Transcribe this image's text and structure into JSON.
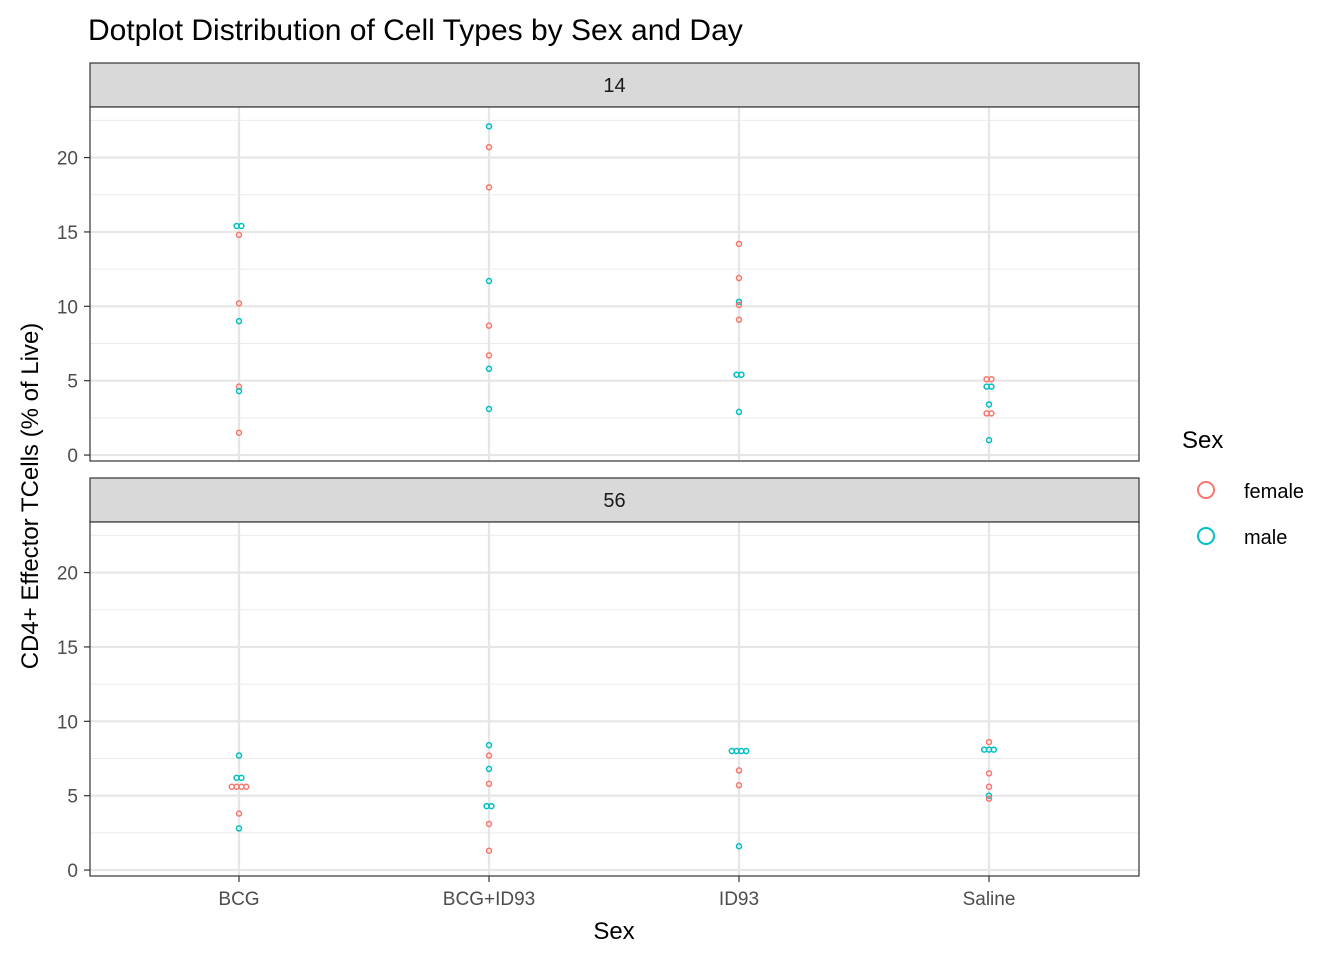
{
  "chart_data": {
    "type": "scatter",
    "title": "Dotplot Distribution of Cell Types by Sex and Day",
    "xlabel": "Sex",
    "ylabel": "CD4+ Effector TCells (% of Live)",
    "categories": [
      "BCG",
      "BCG+ID93",
      "ID93",
      "Saline"
    ],
    "ylim": [
      -0.4,
      23.4
    ],
    "yticks": [
      0,
      5,
      10,
      15,
      20
    ],
    "grid": true,
    "legend": {
      "title": "Sex",
      "position": "right",
      "entries": [
        {
          "label": "female",
          "color": "#F8766D"
        },
        {
          "label": "male",
          "color": "#00BFC4"
        }
      ]
    },
    "panels": [
      {
        "label": "14",
        "points": [
          {
            "x": "BCG",
            "sex": "male",
            "y": 15.4
          },
          {
            "x": "BCG",
            "sex": "male",
            "y": 15.4
          },
          {
            "x": "BCG",
            "sex": "female",
            "y": 14.8
          },
          {
            "x": "BCG",
            "sex": "female",
            "y": 10.2
          },
          {
            "x": "BCG",
            "sex": "male",
            "y": 9.0
          },
          {
            "x": "BCG",
            "sex": "female",
            "y": 4.6
          },
          {
            "x": "BCG",
            "sex": "male",
            "y": 4.3
          },
          {
            "x": "BCG",
            "sex": "female",
            "y": 1.5
          },
          {
            "x": "BCG+ID93",
            "sex": "male",
            "y": 22.1
          },
          {
            "x": "BCG+ID93",
            "sex": "female",
            "y": 20.7
          },
          {
            "x": "BCG+ID93",
            "sex": "female",
            "y": 18.0
          },
          {
            "x": "BCG+ID93",
            "sex": "male",
            "y": 11.7
          },
          {
            "x": "BCG+ID93",
            "sex": "female",
            "y": 8.7
          },
          {
            "x": "BCG+ID93",
            "sex": "female",
            "y": 6.7
          },
          {
            "x": "BCG+ID93",
            "sex": "male",
            "y": 5.8
          },
          {
            "x": "BCG+ID93",
            "sex": "male",
            "y": 3.1
          },
          {
            "x": "ID93",
            "sex": "female",
            "y": 14.2
          },
          {
            "x": "ID93",
            "sex": "female",
            "y": 11.9
          },
          {
            "x": "ID93",
            "sex": "male",
            "y": 10.3
          },
          {
            "x": "ID93",
            "sex": "female",
            "y": 10.1
          },
          {
            "x": "ID93",
            "sex": "female",
            "y": 9.1
          },
          {
            "x": "ID93",
            "sex": "male",
            "y": 5.4
          },
          {
            "x": "ID93",
            "sex": "male",
            "y": 5.4
          },
          {
            "x": "ID93",
            "sex": "male",
            "y": 2.9
          },
          {
            "x": "Saline",
            "sex": "female",
            "y": 5.1
          },
          {
            "x": "Saline",
            "sex": "female",
            "y": 5.1
          },
          {
            "x": "Saline",
            "sex": "male",
            "y": 4.6
          },
          {
            "x": "Saline",
            "sex": "male",
            "y": 4.6
          },
          {
            "x": "Saline",
            "sex": "male",
            "y": 3.4
          },
          {
            "x": "Saline",
            "sex": "female",
            "y": 2.8
          },
          {
            "x": "Saline",
            "sex": "female",
            "y": 2.8
          },
          {
            "x": "Saline",
            "sex": "male",
            "y": 1.0
          }
        ]
      },
      {
        "label": "56",
        "points": [
          {
            "x": "BCG",
            "sex": "male",
            "y": 7.7
          },
          {
            "x": "BCG",
            "sex": "male",
            "y": 6.2
          },
          {
            "x": "BCG",
            "sex": "male",
            "y": 6.2
          },
          {
            "x": "BCG",
            "sex": "female",
            "y": 5.6
          },
          {
            "x": "BCG",
            "sex": "female",
            "y": 5.6
          },
          {
            "x": "BCG",
            "sex": "female",
            "y": 5.6
          },
          {
            "x": "BCG",
            "sex": "female",
            "y": 5.6
          },
          {
            "x": "BCG",
            "sex": "female",
            "y": 3.8
          },
          {
            "x": "BCG",
            "sex": "male",
            "y": 2.8
          },
          {
            "x": "BCG+ID93",
            "sex": "male",
            "y": 8.4
          },
          {
            "x": "BCG+ID93",
            "sex": "female",
            "y": 7.7
          },
          {
            "x": "BCG+ID93",
            "sex": "male",
            "y": 6.8
          },
          {
            "x": "BCG+ID93",
            "sex": "female",
            "y": 5.8
          },
          {
            "x": "BCG+ID93",
            "sex": "male",
            "y": 4.3
          },
          {
            "x": "BCG+ID93",
            "sex": "male",
            "y": 4.3
          },
          {
            "x": "BCG+ID93",
            "sex": "female",
            "y": 3.1
          },
          {
            "x": "BCG+ID93",
            "sex": "female",
            "y": 1.3
          },
          {
            "x": "ID93",
            "sex": "male",
            "y": 8.0
          },
          {
            "x": "ID93",
            "sex": "male",
            "y": 8.0
          },
          {
            "x": "ID93",
            "sex": "male",
            "y": 8.0
          },
          {
            "x": "ID93",
            "sex": "male",
            "y": 8.0
          },
          {
            "x": "ID93",
            "sex": "female",
            "y": 6.7
          },
          {
            "x": "ID93",
            "sex": "female",
            "y": 5.7
          },
          {
            "x": "ID93",
            "sex": "male",
            "y": 1.6
          },
          {
            "x": "Saline",
            "sex": "female",
            "y": 8.6
          },
          {
            "x": "Saline",
            "sex": "male",
            "y": 8.1
          },
          {
            "x": "Saline",
            "sex": "male",
            "y": 8.1
          },
          {
            "x": "Saline",
            "sex": "male",
            "y": 8.1
          },
          {
            "x": "Saline",
            "sex": "female",
            "y": 6.5
          },
          {
            "x": "Saline",
            "sex": "female",
            "y": 5.6
          },
          {
            "x": "Saline",
            "sex": "male",
            "y": 5.0
          },
          {
            "x": "Saline",
            "sex": "female",
            "y": 4.8
          }
        ]
      }
    ]
  }
}
